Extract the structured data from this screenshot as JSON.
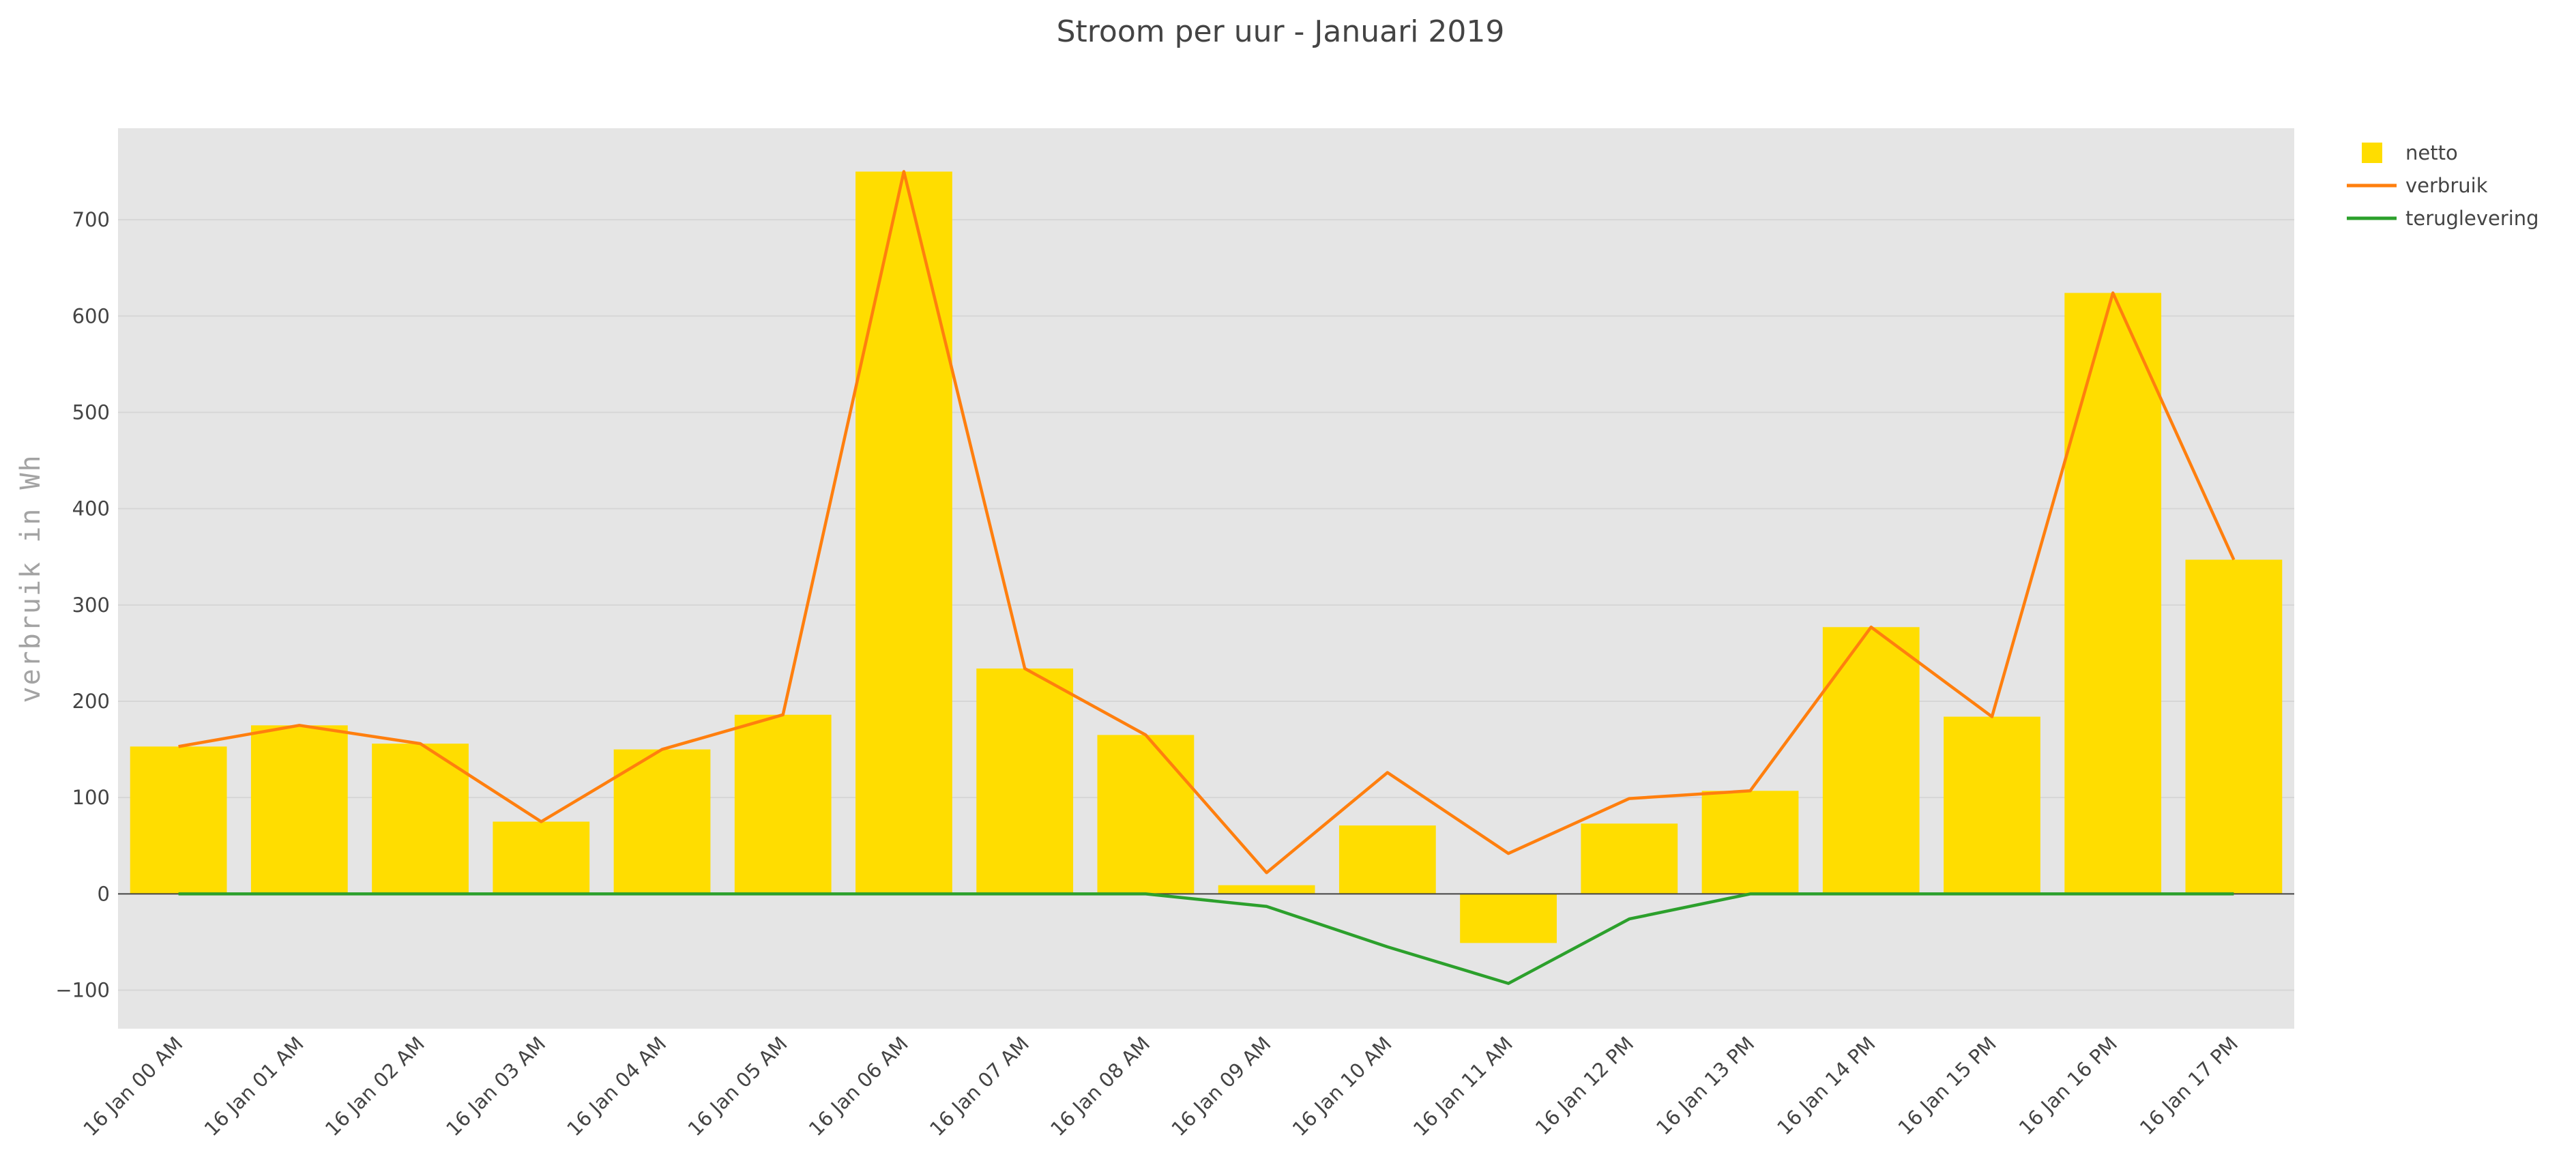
{
  "chart_data": {
    "type": "bar",
    "title": "Stroom per uur - Januari 2019",
    "xlabel": "",
    "ylabel": "verbruik in Wh",
    "categories": [
      "16 Jan 00 AM",
      "16 Jan 01 AM",
      "16 Jan 02 AM",
      "16 Jan 03 AM",
      "16 Jan 04 AM",
      "16 Jan 05 AM",
      "16 Jan 06 AM",
      "16 Jan 07 AM",
      "16 Jan 08 AM",
      "16 Jan 09 AM",
      "16 Jan 10 AM",
      "16 Jan 11 AM",
      "16 Jan 12 PM",
      "16 Jan 13 PM",
      "16 Jan 14 PM",
      "16 Jan 15 PM",
      "16 Jan 16 PM",
      "16 Jan 17 PM"
    ],
    "ylim": [
      -140,
      795
    ],
    "yticks": [
      -100,
      0,
      100,
      200,
      300,
      400,
      500,
      600,
      700
    ],
    "ytick_labels": [
      "−100",
      "0",
      "100",
      "200",
      "300",
      "400",
      "500",
      "600",
      "700"
    ],
    "grid": true,
    "legend_position": "top-right",
    "series": [
      {
        "name": "netto",
        "type": "bar",
        "color": "#FFDD00",
        "values": [
          153,
          175,
          156,
          75,
          150,
          186,
          750,
          234,
          165,
          9,
          71,
          -51,
          73,
          107,
          277,
          184,
          624,
          347
        ]
      },
      {
        "name": "verbruik",
        "type": "line",
        "color": "#FF7F0E",
        "values": [
          153,
          175,
          156,
          75,
          150,
          186,
          750,
          234,
          165,
          22,
          126,
          42,
          99,
          107,
          277,
          184,
          624,
          347
        ]
      },
      {
        "name": "teruglevering",
        "type": "line",
        "color": "#2CA02C",
        "values": [
          0,
          0,
          0,
          0,
          0,
          0,
          0,
          0,
          0,
          -13,
          -55,
          -93,
          -26,
          0,
          0,
          0,
          0,
          0
        ]
      }
    ]
  },
  "colors": {
    "plot_background": "#E5E5E5",
    "grid": "#D6D6D6",
    "zero_line": "#444444"
  }
}
